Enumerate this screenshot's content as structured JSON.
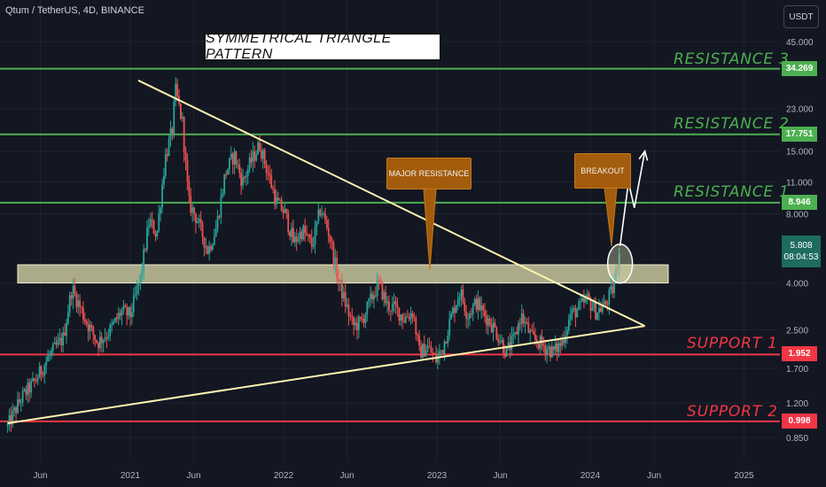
{
  "header": {
    "symbol": "Qtum / TetherUS, 4D, BINANCE",
    "currency": "USDT"
  },
  "title": "SYMMETRICAL TRIANGLE PATTERN",
  "annotations": {
    "major_resistance": "MAJOR RESISTANCE",
    "breakout": "BREAKOUT"
  },
  "levels": [
    {
      "label": "RESISTANCE 3",
      "price": 34.269,
      "tag": "34.269",
      "color": "#4caf50"
    },
    {
      "label": "RESISTANCE 2",
      "price": 17.751,
      "tag": "17.751",
      "color": "#4caf50"
    },
    {
      "label": "RESISTANCE 1",
      "price": 8.946,
      "tag": "8.946",
      "color": "#4caf50"
    },
    {
      "label": "SUPPORT 1",
      "price": 1.952,
      "tag": "1.952",
      "color": "#f23645"
    },
    {
      "label": "SUPPORT 2",
      "price": 0.998,
      "tag": "0.998",
      "color": "#f23645"
    }
  ],
  "current": {
    "price": "5.808",
    "countdown": "08:04:53",
    "color": "#1e6b60"
  },
  "colors": {
    "background": "#131722",
    "up": "#26a69a",
    "down": "#ef5350",
    "trendline": "#fff3b0",
    "zone": "#e6e4b3"
  },
  "chart_data": {
    "type": "candlestick",
    "title": "SYMMETRICAL TRIANGLE PATTERN",
    "y_scale": "log",
    "y_ticks": [
      "45.000",
      "23.000",
      "15.000",
      "11.000",
      "8.000",
      "4.000",
      "2.500",
      "1.700",
      "1.200",
      "0.850"
    ],
    "x_ticks": [
      "Jun",
      "2021",
      "Jun",
      "2022",
      "Jun",
      "2023",
      "Jun",
      "2024",
      "Jun",
      "2025"
    ],
    "price_path": [
      [
        "2020-03-15",
        0.95
      ],
      [
        "2020-04-15",
        1.25
      ],
      [
        "2020-05-20",
        1.5
      ],
      [
        "2020-06-20",
        1.9
      ],
      [
        "2020-07-25",
        2.3
      ],
      [
        "2020-08-15",
        3.8
      ],
      [
        "2020-09-15",
        2.8
      ],
      [
        "2020-10-15",
        2.2
      ],
      [
        "2020-11-15",
        2.5
      ],
      [
        "2020-12-10",
        3.0
      ],
      [
        "2021-01-01",
        2.9
      ],
      [
        "2021-01-25",
        4.2
      ],
      [
        "2021-02-15",
        7.5
      ],
      [
        "2021-03-05",
        6.5
      ],
      [
        "2021-03-25",
        14.0
      ],
      [
        "2021-04-12",
        19.0
      ],
      [
        "2021-04-18",
        28.0
      ],
      [
        "2021-05-05",
        20.0
      ],
      [
        "2021-05-20",
        9.0
      ],
      [
        "2021-06-10",
        7.5
      ],
      [
        "2021-07-05",
        5.5
      ],
      [
        "2021-07-25",
        7.0
      ],
      [
        "2021-08-15",
        12.0
      ],
      [
        "2021-09-05",
        14.5
      ],
      [
        "2021-09-25",
        11.0
      ],
      [
        "2021-10-15",
        13.5
      ],
      [
        "2021-11-05",
        16.0
      ],
      [
        "2021-11-25",
        12.0
      ],
      [
        "2021-12-15",
        9.0
      ],
      [
        "2022-01-05",
        8.0
      ],
      [
        "2022-01-25",
        6.0
      ],
      [
        "2022-02-15",
        6.8
      ],
      [
        "2022-03-10",
        5.8
      ],
      [
        "2022-03-30",
        8.5
      ],
      [
        "2022-04-20",
        6.5
      ],
      [
        "2022-05-10",
        4.2
      ],
      [
        "2022-05-25",
        3.4
      ],
      [
        "2022-06-15",
        2.6
      ],
      [
        "2022-07-05",
        2.7
      ],
      [
        "2022-07-25",
        3.3
      ],
      [
        "2022-08-15",
        4.0
      ],
      [
        "2022-09-05",
        3.2
      ],
      [
        "2022-09-25",
        3.1
      ],
      [
        "2022-10-15",
        2.8
      ],
      [
        "2022-11-05",
        3.0
      ],
      [
        "2022-11-20",
        2.0
      ],
      [
        "2022-12-10",
        2.1
      ],
      [
        "2022-12-30",
        1.85
      ],
      [
        "2023-01-15",
        2.1
      ],
      [
        "2023-02-05",
        2.9
      ],
      [
        "2023-02-25",
        3.7
      ],
      [
        "2023-03-15",
        2.9
      ],
      [
        "2023-04-05",
        3.3
      ],
      [
        "2023-04-25",
        2.9
      ],
      [
        "2023-05-20",
        2.5
      ],
      [
        "2023-06-15",
        2.0
      ],
      [
        "2023-07-05",
        2.3
      ],
      [
        "2023-07-20",
        2.9
      ],
      [
        "2023-08-15",
        2.3
      ],
      [
        "2023-09-10",
        2.15
      ],
      [
        "2023-10-05",
        2.0
      ],
      [
        "2023-10-25",
        2.2
      ],
      [
        "2023-11-15",
        2.9
      ],
      [
        "2023-12-05",
        3.1
      ],
      [
        "2023-12-25",
        3.4
      ],
      [
        "2024-01-15",
        3.0
      ],
      [
        "2024-02-05",
        3.2
      ],
      [
        "2024-02-25",
        3.8
      ],
      [
        "2024-03-12",
        5.8
      ]
    ],
    "patterns": {
      "descending_trendline": [
        [
          "2021-01-20",
          30.5
        ],
        [
          "2024-05-10",
          2.6
        ]
      ],
      "ascending_trendline": [
        [
          "2020-03-15",
          0.98
        ],
        [
          "2024-05-10",
          2.6
        ]
      ],
      "resistance_zone": [
        4.0,
        4.8
      ],
      "projection": [
        [
          "2024-03-12",
          5.8
        ],
        [
          "2024-04-01",
          11.0
        ],
        [
          "2024-04-15",
          8.5
        ],
        [
          "2024-05-10",
          15.0
        ]
      ]
    }
  }
}
